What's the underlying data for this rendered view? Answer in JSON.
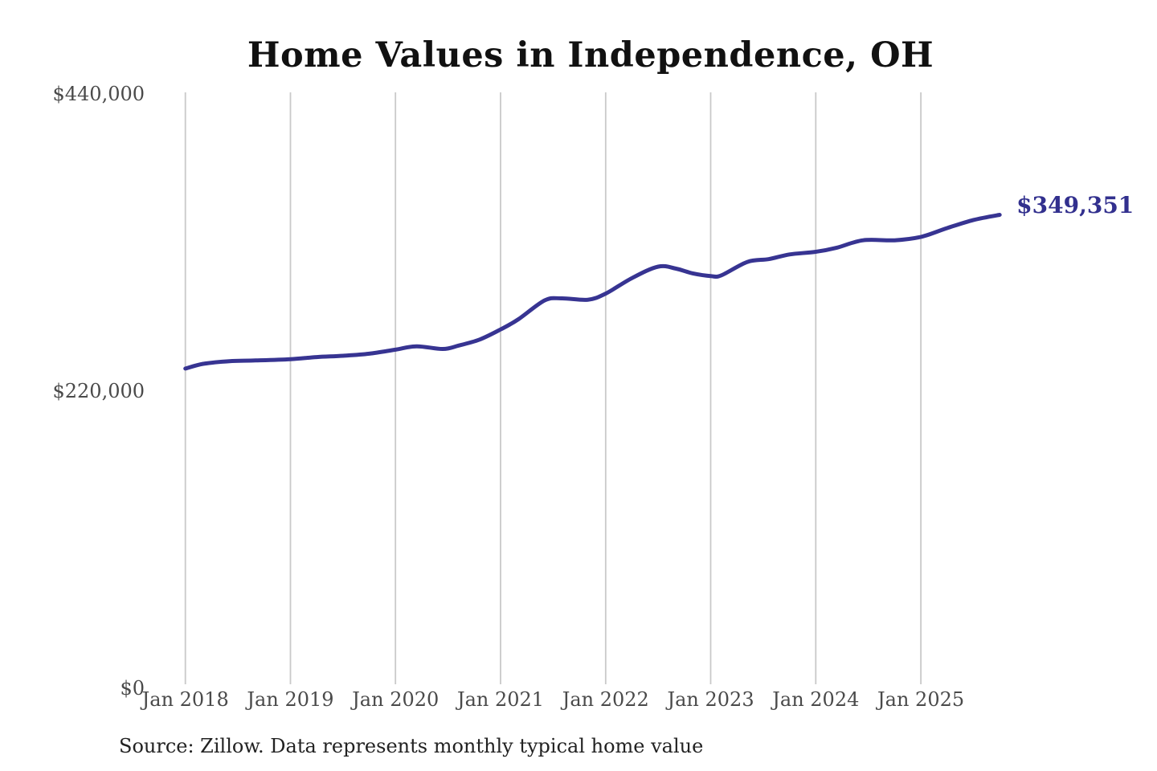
{
  "title": "Home Values in Independence, OH",
  "source_note": "Source: Zillow. Data represents monthly typical home value",
  "colors": {
    "line": "#373492",
    "end_label": "#32308e",
    "grid": "#c9c9c9",
    "axis_text": "#4a4a4a",
    "title_text": "#111111",
    "source_text": "#222222",
    "background": "#ffffff"
  },
  "chart_data": {
    "type": "line",
    "title": "Home Values in Independence, OH",
    "xlabel": "",
    "ylabel": "",
    "grid": "vertical-only",
    "legend_position": "none",
    "x_tick_labels": [
      "Jan 2018",
      "Jan 2019",
      "Jan 2020",
      "Jan 2021",
      "Jan 2022",
      "Jan 2023",
      "Jan 2024",
      "Jan 2025"
    ],
    "x_tick_positions": [
      2018,
      2019,
      2020,
      2021,
      2022,
      2023,
      2024,
      2025
    ],
    "y_tick_labels": [
      "$0",
      "$220,000",
      "$440,000"
    ],
    "y_tick_positions": [
      0,
      220000,
      440000
    ],
    "xlim": [
      2018,
      2025.83
    ],
    "ylim": [
      0,
      440000
    ],
    "end_annotation": "$349,351",
    "series": [
      {
        "name": "Monthly typical home value",
        "unit": "USD",
        "x": [
          2018.0,
          2018.17,
          2018.42,
          2018.67,
          2019.0,
          2019.25,
          2019.5,
          2019.75,
          2020.0,
          2020.2,
          2020.45,
          2020.6,
          2020.8,
          2021.0,
          2021.17,
          2021.42,
          2021.58,
          2021.83,
          2022.0,
          2022.25,
          2022.5,
          2022.67,
          2022.83,
          2023.0,
          2023.1,
          2023.35,
          2023.55,
          2023.75,
          2024.0,
          2024.2,
          2024.45,
          2024.75,
          2025.0,
          2025.25,
          2025.5,
          2025.75
        ],
        "values": [
          235500,
          239000,
          241000,
          241500,
          242500,
          244000,
          245000,
          246500,
          249500,
          252000,
          250000,
          252500,
          257000,
          264500,
          272000,
          286000,
          287500,
          286500,
          291000,
          302500,
          311000,
          309500,
          306000,
          304000,
          304500,
          314500,
          316500,
          320000,
          322000,
          325000,
          330500,
          330500,
          333000,
          339500,
          345500,
          349351
        ],
        "final_value": 349351
      }
    ]
  }
}
